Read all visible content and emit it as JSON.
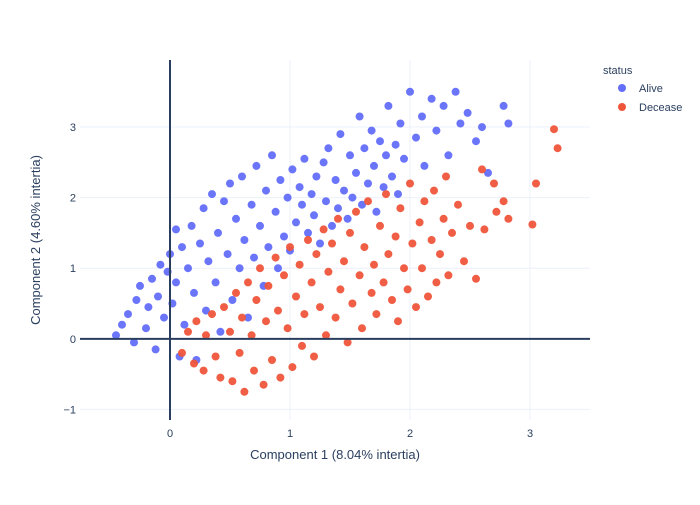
{
  "chart_data": {
    "type": "scatter",
    "title": "",
    "xlabel": "Component 1 (8.04% intertia)",
    "ylabel": "Component 2 (4.60% intertia)",
    "xlim": [
      -0.75,
      3.5
    ],
    "ylim": [
      -1.15,
      3.95
    ],
    "x_ticks": [
      0,
      1,
      2,
      3
    ],
    "y_ticks": [
      -1,
      0,
      1,
      2,
      3
    ],
    "x_tick_labels": [
      "0",
      "1",
      "2",
      "3"
    ],
    "y_tick_labels": [
      "−1",
      "0",
      "1",
      "2",
      "3"
    ],
    "grid": true,
    "zero_lines": true,
    "legend": {
      "title": "status",
      "position": "right"
    },
    "series": [
      {
        "name": "Alive",
        "color": "#636efa",
        "points": [
          [
            -0.45,
            0.05
          ],
          [
            -0.4,
            0.2
          ],
          [
            -0.35,
            0.35
          ],
          [
            -0.3,
            -0.05
          ],
          [
            -0.28,
            0.55
          ],
          [
            -0.25,
            0.75
          ],
          [
            -0.2,
            0.15
          ],
          [
            -0.18,
            0.45
          ],
          [
            -0.15,
            0.85
          ],
          [
            -0.12,
            -0.15
          ],
          [
            -0.1,
            0.6
          ],
          [
            -0.08,
            1.05
          ],
          [
            -0.05,
            0.3
          ],
          [
            -0.02,
            0.95
          ],
          [
            0.0,
            1.2
          ],
          [
            0.02,
            0.5
          ],
          [
            0.05,
            0.8
          ],
          [
            0.05,
            1.55
          ],
          [
            0.08,
            -0.25
          ],
          [
            0.1,
            1.3
          ],
          [
            0.12,
            0.2
          ],
          [
            0.15,
            1.0
          ],
          [
            0.18,
            1.6
          ],
          [
            0.2,
            0.65
          ],
          [
            0.22,
            -0.3
          ],
          [
            0.25,
            1.35
          ],
          [
            0.28,
            1.85
          ],
          [
            0.3,
            0.4
          ],
          [
            0.32,
            1.1
          ],
          [
            0.35,
            2.05
          ],
          [
            0.38,
            0.8
          ],
          [
            0.4,
            1.5
          ],
          [
            0.42,
            0.1
          ],
          [
            0.45,
            1.95
          ],
          [
            0.48,
            1.2
          ],
          [
            0.5,
            2.2
          ],
          [
            0.52,
            0.55
          ],
          [
            0.55,
            1.7
          ],
          [
            0.58,
            1.0
          ],
          [
            0.6,
            2.3
          ],
          [
            0.62,
            1.4
          ],
          [
            0.65,
            0.3
          ],
          [
            0.68,
            1.9
          ],
          [
            0.7,
            1.15
          ],
          [
            0.72,
            2.45
          ],
          [
            0.75,
            1.6
          ],
          [
            0.78,
            0.75
          ],
          [
            0.8,
            2.1
          ],
          [
            0.82,
            1.3
          ],
          [
            0.85,
            2.6
          ],
          [
            0.88,
            1.8
          ],
          [
            0.9,
            1.0
          ],
          [
            0.92,
            2.25
          ],
          [
            0.95,
            1.45
          ],
          [
            0.98,
            2.0
          ],
          [
            1.0,
            1.25
          ],
          [
            1.02,
            2.4
          ],
          [
            1.05,
            1.65
          ],
          [
            1.08,
            2.15
          ],
          [
            1.1,
            1.9
          ],
          [
            1.12,
            2.55
          ],
          [
            1.15,
            1.5
          ],
          [
            1.18,
            2.05
          ],
          [
            1.2,
            1.75
          ],
          [
            1.22,
            2.3
          ],
          [
            1.25,
            1.35
          ],
          [
            1.28,
            2.5
          ],
          [
            1.3,
            1.95
          ],
          [
            1.32,
            2.7
          ],
          [
            1.35,
            1.6
          ],
          [
            1.38,
            2.25
          ],
          [
            1.4,
            1.85
          ],
          [
            1.42,
            2.9
          ],
          [
            1.45,
            2.1
          ],
          [
            1.48,
            1.7
          ],
          [
            1.5,
            2.6
          ],
          [
            1.52,
            2.0
          ],
          [
            1.55,
            2.35
          ],
          [
            1.58,
            3.15
          ],
          [
            1.6,
            1.9
          ],
          [
            1.62,
            2.7
          ],
          [
            1.65,
            2.2
          ],
          [
            1.68,
            2.95
          ],
          [
            1.7,
            2.45
          ],
          [
            1.72,
            1.8
          ],
          [
            1.75,
            2.8
          ],
          [
            1.78,
            2.15
          ],
          [
            1.8,
            2.6
          ],
          [
            1.82,
            3.3
          ],
          [
            1.85,
            2.3
          ],
          [
            1.88,
            2.75
          ],
          [
            1.9,
            2.05
          ],
          [
            1.92,
            3.05
          ],
          [
            1.95,
            2.55
          ],
          [
            2.0,
            3.5
          ],
          [
            2.05,
            2.85
          ],
          [
            2.1,
            3.15
          ],
          [
            2.12,
            2.45
          ],
          [
            2.18,
            3.4
          ],
          [
            2.22,
            2.95
          ],
          [
            2.28,
            3.3
          ],
          [
            2.32,
            2.6
          ],
          [
            2.38,
            3.5
          ],
          [
            2.42,
            3.05
          ],
          [
            2.48,
            3.2
          ],
          [
            2.55,
            2.8
          ],
          [
            2.6,
            3.0
          ],
          [
            2.65,
            2.35
          ],
          [
            2.78,
            3.3
          ],
          [
            2.82,
            3.05
          ]
        ]
      },
      {
        "name": "Decease",
        "color": "#ef553b",
        "points": [
          [
            0.1,
            -0.2
          ],
          [
            0.15,
            0.1
          ],
          [
            0.2,
            -0.35
          ],
          [
            0.22,
            0.25
          ],
          [
            0.28,
            -0.45
          ],
          [
            0.3,
            0.05
          ],
          [
            0.35,
            0.35
          ],
          [
            0.38,
            -0.25
          ],
          [
            0.42,
            -0.55
          ],
          [
            0.45,
            0.45
          ],
          [
            0.5,
            0.1
          ],
          [
            0.52,
            -0.6
          ],
          [
            0.55,
            0.65
          ],
          [
            0.58,
            -0.2
          ],
          [
            0.6,
            0.3
          ],
          [
            0.62,
            -0.75
          ],
          [
            0.65,
            0.8
          ],
          [
            0.68,
            0.05
          ],
          [
            0.7,
            -0.45
          ],
          [
            0.72,
            0.55
          ],
          [
            0.75,
            1.0
          ],
          [
            0.78,
            -0.65
          ],
          [
            0.8,
            0.25
          ],
          [
            0.82,
            0.75
          ],
          [
            0.85,
            -0.3
          ],
          [
            0.88,
            1.15
          ],
          [
            0.9,
            0.4
          ],
          [
            0.92,
            -0.55
          ],
          [
            0.95,
            0.9
          ],
          [
            0.98,
            0.15
          ],
          [
            1.0,
            1.3
          ],
          [
            1.02,
            -0.4
          ],
          [
            1.05,
            0.6
          ],
          [
            1.08,
            1.05
          ],
          [
            1.1,
            -0.1
          ],
          [
            1.12,
            0.35
          ],
          [
            1.15,
            1.4
          ],
          [
            1.18,
            0.8
          ],
          [
            1.2,
            -0.25
          ],
          [
            1.22,
            1.2
          ],
          [
            1.25,
            0.45
          ],
          [
            1.28,
            1.55
          ],
          [
            1.3,
            0.05
          ],
          [
            1.32,
            0.95
          ],
          [
            1.35,
            1.35
          ],
          [
            1.38,
            0.3
          ],
          [
            1.4,
            1.7
          ],
          [
            1.42,
            0.7
          ],
          [
            1.45,
            1.1
          ],
          [
            1.48,
            -0.05
          ],
          [
            1.5,
            1.5
          ],
          [
            1.52,
            0.5
          ],
          [
            1.55,
            1.8
          ],
          [
            1.58,
            0.9
          ],
          [
            1.6,
            0.15
          ],
          [
            1.62,
            1.3
          ],
          [
            1.65,
            1.95
          ],
          [
            1.68,
            0.65
          ],
          [
            1.7,
            1.05
          ],
          [
            1.72,
            0.35
          ],
          [
            1.75,
            1.6
          ],
          [
            1.78,
            0.8
          ],
          [
            1.8,
            2.05
          ],
          [
            1.82,
            1.2
          ],
          [
            1.85,
            0.55
          ],
          [
            1.88,
            1.45
          ],
          [
            1.9,
            0.25
          ],
          [
            1.92,
            1.85
          ],
          [
            1.95,
            1.0
          ],
          [
            1.98,
            0.7
          ],
          [
            2.0,
            2.2
          ],
          [
            2.02,
            1.35
          ],
          [
            2.05,
            0.45
          ],
          [
            2.08,
            1.65
          ],
          [
            2.1,
            1.0
          ],
          [
            2.12,
            1.95
          ],
          [
            2.15,
            0.6
          ],
          [
            2.18,
            1.4
          ],
          [
            2.2,
            2.1
          ],
          [
            2.22,
            0.8
          ],
          [
            2.25,
            1.2
          ],
          [
            2.28,
            1.7
          ],
          [
            2.3,
            2.3
          ],
          [
            2.32,
            0.9
          ],
          [
            2.35,
            1.5
          ],
          [
            2.4,
            1.9
          ],
          [
            2.45,
            1.1
          ],
          [
            2.5,
            1.6
          ],
          [
            2.55,
            0.85
          ],
          [
            2.6,
            2.4
          ],
          [
            2.62,
            1.55
          ],
          [
            2.7,
            2.2
          ],
          [
            2.72,
            1.8
          ],
          [
            2.78,
            1.95
          ],
          [
            2.82,
            1.7
          ],
          [
            3.02,
            1.62
          ],
          [
            3.05,
            2.2
          ],
          [
            3.2,
            2.97
          ],
          [
            3.23,
            2.7
          ]
        ]
      }
    ]
  }
}
